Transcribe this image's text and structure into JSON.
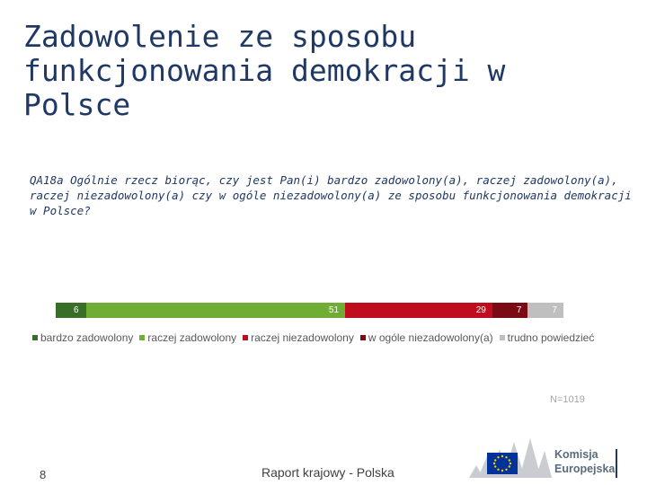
{
  "title": "Zadowolenie ze sposobu funkcjonowania demokracji w Polsce",
  "question": "QA18a Ogólnie rzecz biorąc, czy jest Pan(i) bardzo zadowolony(a), raczej zadowolony(a), raczej niezadowolony(a) czy w ogóle niezadowolony(a) ze sposobu funkcjonowania demokracji w Polsce?",
  "chart_data": {
    "type": "bar",
    "stacked": true,
    "orientation": "horizontal",
    "series": [
      {
        "name": "bardzo zadowolony",
        "value": 6,
        "color": "#386e27"
      },
      {
        "name": "raczej zadowolony",
        "value": 51,
        "color": "#70ad34"
      },
      {
        "name": "raczej niezadowolony",
        "value": 29,
        "color": "#c00d1e"
      },
      {
        "name": "w ogóle niezadowolony(a)",
        "value": 7,
        "color": "#7a0a13"
      },
      {
        "name": "trudno powiedzieć",
        "value": 7,
        "color": "#bfbfbf"
      }
    ],
    "legend_position": "bottom",
    "note": "N=1019"
  },
  "footer": {
    "page_number": "8",
    "report": "Raport krajowy - Polska",
    "logo_line1": "Komisja",
    "logo_line2": "Europejska"
  },
  "colors": {
    "title": "#1f3864",
    "eu_flag": "#003399",
    "eu_star": "#ffcc00"
  }
}
